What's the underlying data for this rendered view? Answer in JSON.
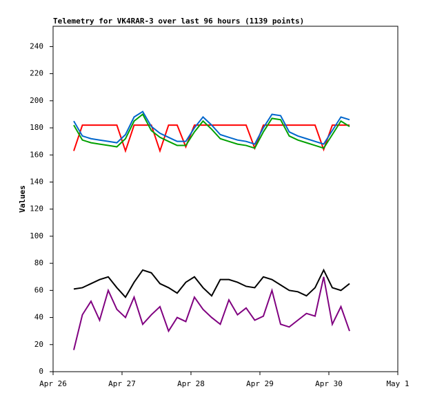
{
  "chart_data": {
    "type": "line",
    "title": "Telemetry for VK4RAR-3 over last 96 hours (1139 points)",
    "y_label": "Values",
    "x": [
      0.3,
      0.425,
      0.55,
      0.675,
      0.8,
      0.925,
      1.05,
      1.175,
      1.3,
      1.425,
      1.55,
      1.675,
      1.8,
      1.925,
      2.05,
      2.175,
      2.3,
      2.425,
      2.55,
      2.675,
      2.8,
      2.925,
      3.05,
      3.175,
      3.3,
      3.425,
      3.55,
      3.675,
      3.8,
      3.925,
      4.05,
      4.175,
      4.3
    ],
    "series": [
      {
        "color": "#ff0000",
        "values": [
          163,
          182,
          182,
          182,
          182,
          182,
          163,
          182,
          182,
          182,
          163,
          182,
          182,
          166,
          182,
          182,
          182,
          182,
          182,
          182,
          182,
          165,
          182,
          182,
          182,
          182,
          182,
          182,
          182,
          164,
          182,
          182,
          182
        ]
      },
      {
        "color": "#0066cc",
        "values": [
          185,
          174,
          172,
          171,
          170,
          169,
          175,
          188,
          192,
          181,
          176,
          173,
          170,
          170,
          180,
          188,
          182,
          175,
          173,
          171,
          170,
          168,
          180,
          190,
          189,
          177,
          174,
          172,
          170,
          168,
          178,
          188,
          186
        ]
      },
      {
        "color": "#00a000",
        "values": [
          182,
          171,
          169,
          168,
          167,
          166,
          172,
          185,
          190,
          178,
          173,
          170,
          167,
          167,
          177,
          185,
          179,
          172,
          170,
          168,
          167,
          165,
          177,
          187,
          186,
          174,
          171,
          169,
          167,
          165,
          175,
          185,
          181
        ]
      },
      {
        "color": "#000000",
        "values": [
          61,
          62,
          65,
          68,
          70,
          62,
          55,
          66,
          75,
          73,
          65,
          62,
          58,
          66,
          70,
          62,
          56,
          68,
          68,
          66,
          63,
          62,
          70,
          68,
          64,
          60,
          59,
          56,
          62,
          75,
          62,
          60,
          65
        ]
      },
      {
        "color": "#800080",
        "values": [
          16,
          42,
          52,
          38,
          60,
          46,
          40,
          55,
          35,
          42,
          48,
          30,
          40,
          37,
          55,
          46,
          40,
          35,
          53,
          42,
          47,
          38,
          41,
          60,
          35,
          33,
          38,
          43,
          41,
          70,
          35,
          48,
          30
        ]
      }
    ],
    "xlim": [
      0,
      5
    ],
    "xticks": [
      {
        "value": 0,
        "label": "Apr 26"
      },
      {
        "value": 1,
        "label": "Apr 27"
      },
      {
        "value": 2,
        "label": "Apr 28"
      },
      {
        "value": 3,
        "label": "Apr 29"
      },
      {
        "value": 4,
        "label": "Apr 30"
      },
      {
        "value": 5,
        "label": "May 1"
      }
    ],
    "ylim": [
      0,
      255
    ],
    "yticks": [
      0,
      20,
      40,
      60,
      80,
      100,
      120,
      140,
      160,
      180,
      200,
      220,
      240
    ],
    "grid": false
  }
}
